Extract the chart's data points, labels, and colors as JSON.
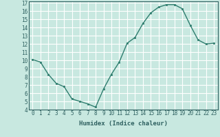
{
  "x": [
    0,
    1,
    2,
    3,
    4,
    5,
    6,
    7,
    8,
    9,
    10,
    11,
    12,
    13,
    14,
    15,
    16,
    17,
    18,
    19,
    20,
    21,
    22,
    23
  ],
  "y": [
    10.1,
    9.8,
    8.3,
    7.2,
    6.8,
    5.3,
    5.0,
    4.7,
    4.3,
    6.5,
    8.3,
    9.8,
    12.1,
    12.8,
    14.5,
    15.8,
    16.5,
    16.8,
    16.8,
    16.3,
    14.3,
    12.5,
    12.0,
    12.1
  ],
  "xlabel": "Humidex (Indice chaleur)",
  "ylim": [
    4,
    17
  ],
  "xlim": [
    -0.5,
    23.5
  ],
  "yticks": [
    4,
    5,
    6,
    7,
    8,
    9,
    10,
    11,
    12,
    13,
    14,
    15,
    16,
    17
  ],
  "xticks": [
    0,
    1,
    2,
    3,
    4,
    5,
    6,
    7,
    8,
    9,
    10,
    11,
    12,
    13,
    14,
    15,
    16,
    17,
    18,
    19,
    20,
    21,
    22,
    23
  ],
  "line_color": "#2e7d6e",
  "marker_color": "#2e7d6e",
  "bg_color": "#c8e8e0",
  "grid_color": "#ffffff",
  "text_color": "#2e6060",
  "font_family": "monospace",
  "tick_fontsize": 5.5,
  "xlabel_fontsize": 6.5,
  "linewidth": 1.0,
  "markersize": 2.0
}
